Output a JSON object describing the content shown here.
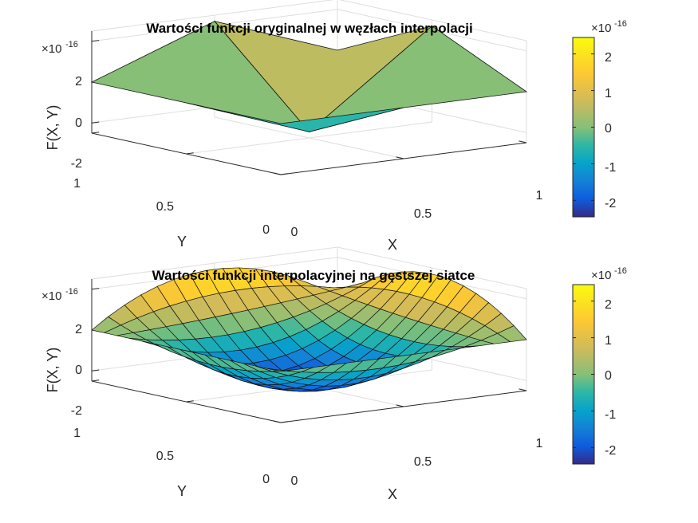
{
  "chart_data": [
    {
      "type": "surface",
      "title": "Wartości funkcji oryginalnej w węzłach interpolacji",
      "xlabel": "X",
      "ylabel": "Y",
      "zlabel": "F(X, Y)",
      "z_multiplier": "10",
      "z_multiplier_exp": "-16",
      "xlim": [
        0,
        1
      ],
      "ylim": [
        0,
        1
      ],
      "zlim": [
        -2.5,
        2.5
      ],
      "x_ticks": [
        "0",
        "0.5",
        "1"
      ],
      "y_ticks": [
        "0",
        "0.5",
        "1"
      ],
      "z_ticks": [
        "-2",
        "0",
        "2"
      ],
      "x": [
        0,
        0.5,
        1
      ],
      "y": [
        0,
        0.5,
        1
      ],
      "z": [
        [
          0,
          0,
          0
        ],
        [
          0,
          -2.2,
          2.2
        ],
        [
          0,
          2.2,
          0
        ]
      ],
      "colorbar": {
        "exp": "-16",
        "ticks": [
          "-2",
          "-1",
          "0",
          "1",
          "2"
        ],
        "range": [
          -2.45,
          2.45
        ],
        "colormap": "parula"
      }
    },
    {
      "type": "surface",
      "title": "Wartości funkcji interpolacyjnej na gęstszej siatce",
      "xlabel": "X",
      "ylabel": "Y",
      "zlabel": "F(X, Y)",
      "z_multiplier": "10",
      "z_multiplier_exp": "-16",
      "xlim": [
        0,
        1
      ],
      "ylim": [
        0,
        1
      ],
      "zlim": [
        -2.5,
        2.5
      ],
      "x_ticks": [
        "0",
        "0.5",
        "1"
      ],
      "y_ticks": [
        "0",
        "0.5",
        "1"
      ],
      "z_ticks": [
        "-2",
        "0",
        "2"
      ],
      "grid_points": 16,
      "colorbar": {
        "exp": "-16",
        "ticks": [
          "-2",
          "-1",
          "0",
          "1",
          "2"
        ],
        "range": [
          -2.45,
          2.45
        ],
        "colormap": "parula"
      }
    }
  ]
}
